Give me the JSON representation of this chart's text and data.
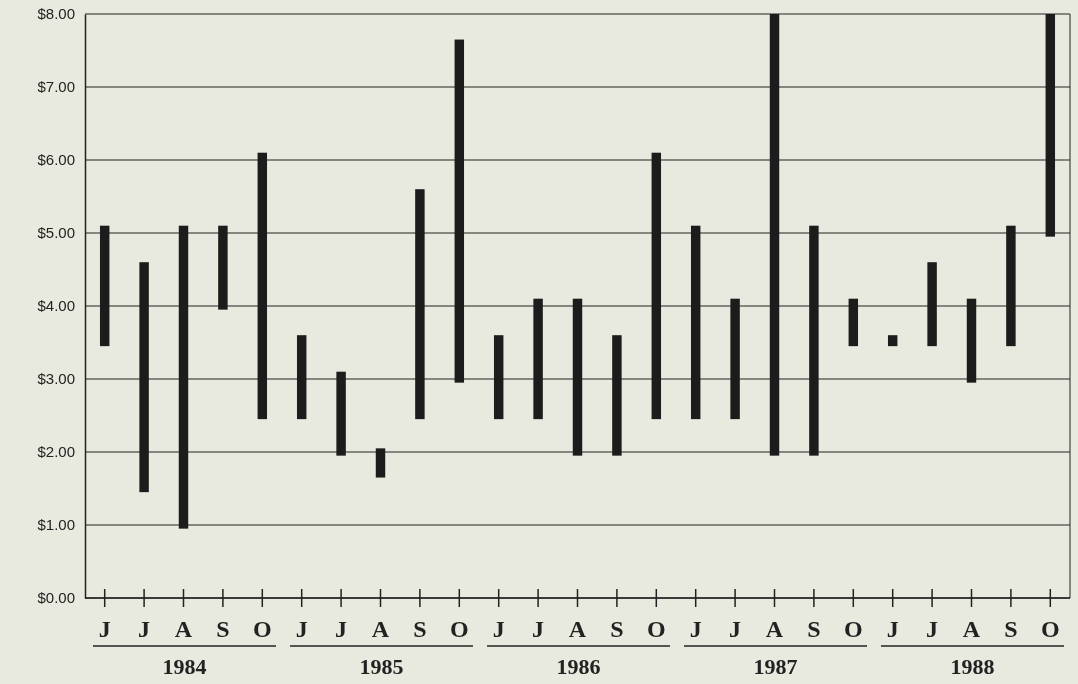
{
  "chart_data": {
    "type": "bar",
    "categories": [
      "J",
      "J",
      "A",
      "S",
      "O",
      "J",
      "J",
      "A",
      "S",
      "O",
      "J",
      "J",
      "A",
      "S",
      "O",
      "J",
      "J",
      "A",
      "S",
      "O",
      "J",
      "J",
      "A",
      "S",
      "O"
    ],
    "base": [
      3.45,
      1.45,
      0.95,
      3.95,
      2.45,
      2.45,
      1.95,
      1.65,
      2.45,
      2.95,
      2.45,
      2.45,
      1.95,
      1.95,
      2.45,
      2.45,
      2.45,
      1.95,
      1.95,
      3.45,
      3.45,
      3.45,
      2.95,
      3.45,
      4.95
    ],
    "values": [
      1.65,
      3.15,
      4.15,
      1.15,
      3.65,
      1.15,
      1.15,
      0.4,
      3.15,
      4.7,
      1.15,
      1.65,
      2.15,
      1.65,
      3.65,
      2.65,
      1.65,
      6.05,
      3.15,
      0.65,
      0.15,
      1.15,
      1.15,
      1.65,
      3.05
    ],
    "color": "#1c1c1c",
    "ylim": [
      0,
      8
    ],
    "yticks": [
      {
        "value": 0,
        "label": "$0.00"
      },
      {
        "value": 1,
        "label": "$1.00"
      },
      {
        "value": 2,
        "label": "$2.00"
      },
      {
        "value": 3,
        "label": "$3.00"
      },
      {
        "value": 4,
        "label": "$4.00"
      },
      {
        "value": 5,
        "label": "$5.00"
      },
      {
        "value": 6,
        "label": "$6.00"
      },
      {
        "value": 7,
        "label": "$7.00"
      },
      {
        "value": 8,
        "label": "$8.00"
      }
    ],
    "grid": "y",
    "annotations": [
      "1984",
      "1985",
      "1986",
      "1987",
      "1988"
    ]
  }
}
